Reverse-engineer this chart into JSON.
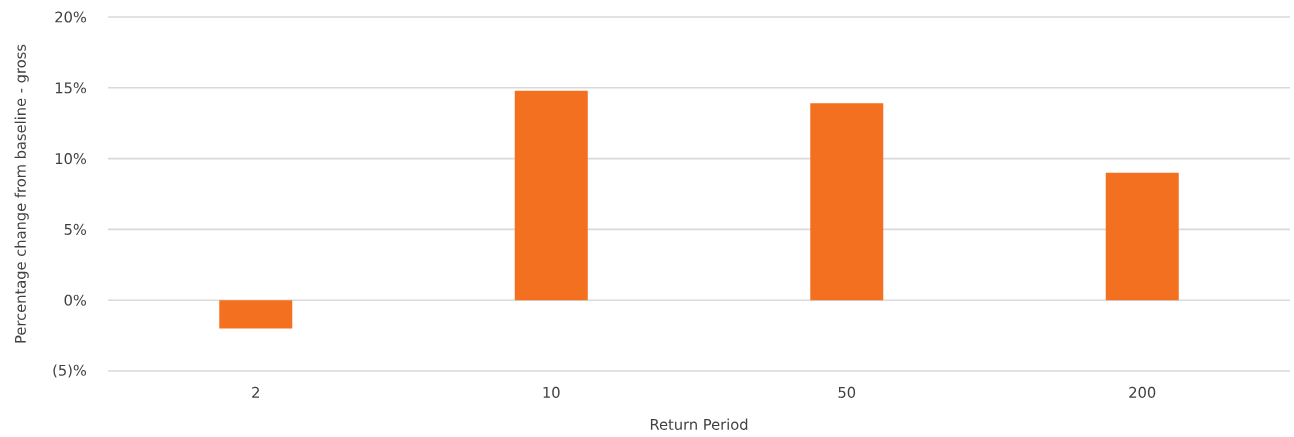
{
  "chart_data": {
    "type": "bar",
    "xlabel": "Return Period",
    "ylabel": "Percentage change from baseline - gross",
    "categories": [
      "2",
      "10",
      "50",
      "200"
    ],
    "values": [
      -2.0,
      14.8,
      13.9,
      9.0
    ],
    "color": "#f37021",
    "ylim": [
      -5,
      20
    ],
    "yticks": [
      {
        "value": -5,
        "label": "(5)%"
      },
      {
        "value": 0,
        "label": "0%"
      },
      {
        "value": 5,
        "label": "5%"
      },
      {
        "value": 10,
        "label": "10%"
      },
      {
        "value": 15,
        "label": "15%"
      },
      {
        "value": 20,
        "label": "20%"
      }
    ],
    "grid": "y"
  }
}
